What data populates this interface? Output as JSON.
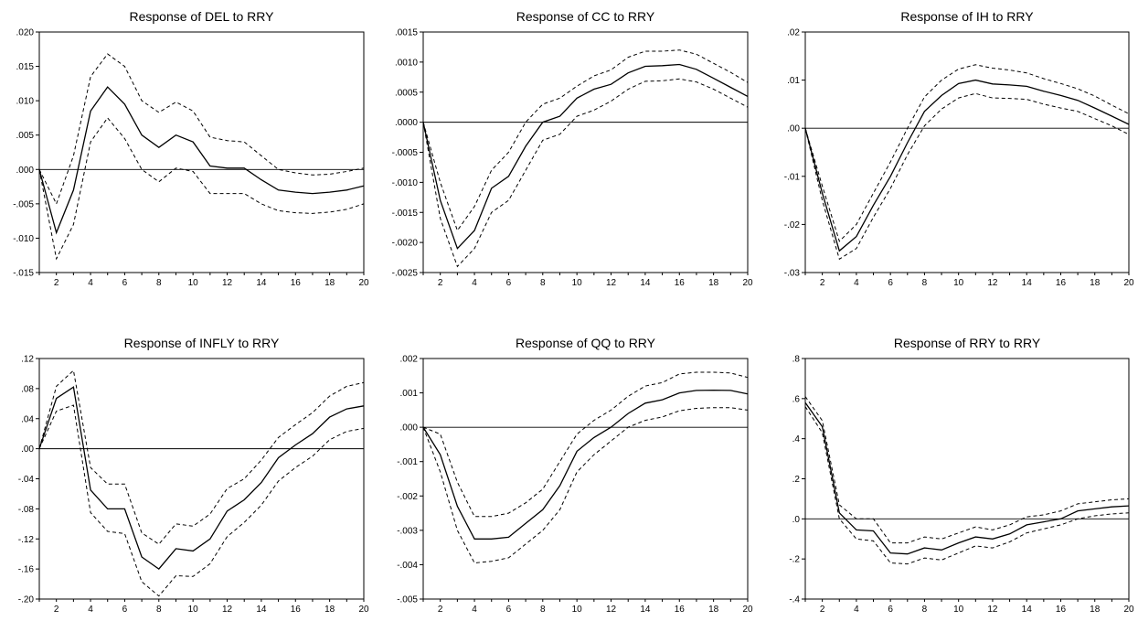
{
  "chart_data": [
    {
      "type": "line",
      "title": "Response of DEL to RRY",
      "x": [
        1,
        2,
        3,
        4,
        5,
        6,
        7,
        8,
        9,
        10,
        11,
        12,
        13,
        14,
        15,
        16,
        17,
        18,
        19,
        20
      ],
      "xticks": [
        "2",
        "4",
        "6",
        "8",
        "10",
        "12",
        "14",
        "16",
        "18",
        "20"
      ],
      "ylim": [
        -0.015,
        0.02
      ],
      "yticks": [
        ".020",
        ".015",
        ".010",
        ".005",
        ".000",
        "-.005",
        "-.010",
        "-.015"
      ],
      "grid": false,
      "series": [
        {
          "role": "response",
          "style": "solid",
          "values": [
            0.0,
            -0.0092,
            -0.003,
            0.0085,
            0.012,
            0.0095,
            0.005,
            0.0032,
            0.005,
            0.004,
            0.0005,
            0.0002,
            0.0002,
            -0.0015,
            -0.003,
            -0.0033,
            -0.0035,
            -0.0033,
            -0.003,
            -0.0024
          ]
        },
        {
          "role": "upper",
          "style": "dashed",
          "values": [
            0.0,
            -0.005,
            0.002,
            0.0135,
            0.0168,
            0.015,
            0.01,
            0.0083,
            0.0098,
            0.0085,
            0.0047,
            0.0042,
            0.004,
            0.002,
            0.0,
            -0.0005,
            -0.0008,
            -0.0007,
            -0.0003,
            0.0002
          ]
        },
        {
          "role": "lower",
          "style": "dashed",
          "values": [
            0.0,
            -0.013,
            -0.008,
            0.004,
            0.0075,
            0.0045,
            0.0,
            -0.0018,
            0.0002,
            -0.0003,
            -0.0035,
            -0.0035,
            -0.0035,
            -0.005,
            -0.006,
            -0.0063,
            -0.0064,
            -0.0062,
            -0.0058,
            -0.005
          ]
        }
      ]
    },
    {
      "type": "line",
      "title": "Response of CC to RRY",
      "x": [
        1,
        2,
        3,
        4,
        5,
        6,
        7,
        8,
        9,
        10,
        11,
        12,
        13,
        14,
        15,
        16,
        17,
        18,
        19,
        20
      ],
      "xticks": [
        "2",
        "4",
        "6",
        "8",
        "10",
        "12",
        "14",
        "16",
        "18",
        "20"
      ],
      "ylim": [
        -0.0025,
        0.0015
      ],
      "yticks": [
        ".0015",
        ".0010",
        ".0005",
        ".0000",
        "-.0005",
        "-.0010",
        "-.0015",
        "-.0020",
        "-.0025"
      ],
      "grid": false,
      "series": [
        {
          "role": "response",
          "style": "solid",
          "values": [
            0.0,
            -0.0013,
            -0.0021,
            -0.0018,
            -0.0011,
            -0.0009,
            -0.0004,
            0.0,
            0.0001,
            0.0004,
            0.00055,
            0.00063,
            0.00082,
            0.00093,
            0.00094,
            0.00096,
            0.00088,
            0.00073,
            0.00058,
            0.00043
          ]
        },
        {
          "role": "upper",
          "style": "dashed",
          "values": [
            0.0,
            -0.001,
            -0.0018,
            -0.0014,
            -0.0008,
            -0.0005,
            0.0,
            0.0003,
            0.0004,
            0.0006,
            0.00077,
            0.00087,
            0.00108,
            0.00118,
            0.00118,
            0.0012,
            0.00113,
            0.00098,
            0.00083,
            0.00066
          ]
        },
        {
          "role": "lower",
          "style": "dashed",
          "values": [
            0.0,
            -0.0016,
            -0.0024,
            -0.0021,
            -0.0015,
            -0.0013,
            -0.0008,
            -0.0003,
            -0.0002,
            0.0001,
            0.0002,
            0.00035,
            0.00055,
            0.00068,
            0.00069,
            0.00072,
            0.00067,
            0.00055,
            0.0004,
            0.00025
          ]
        }
      ]
    },
    {
      "type": "line",
      "title": "Response of IH to RRY",
      "x": [
        1,
        2,
        3,
        4,
        5,
        6,
        7,
        8,
        9,
        10,
        11,
        12,
        13,
        14,
        15,
        16,
        17,
        18,
        19,
        20
      ],
      "xticks": [
        "2",
        "4",
        "6",
        "8",
        "10",
        "12",
        "14",
        "16",
        "18",
        "20"
      ],
      "ylim": [
        -0.03,
        0.02
      ],
      "yticks": [
        ".02",
        ".01",
        ".00",
        "-.01",
        "-.02",
        "-.03"
      ],
      "grid": false,
      "series": [
        {
          "role": "response",
          "style": "solid",
          "values": [
            0.0,
            -0.0135,
            -0.0255,
            -0.0225,
            -0.016,
            -0.01,
            -0.003,
            0.0035,
            0.0068,
            0.0093,
            0.01,
            0.0092,
            0.009,
            0.0087,
            0.0077,
            0.0068,
            0.0058,
            0.0042,
            0.0025,
            0.0008
          ]
        },
        {
          "role": "upper",
          "style": "dashed",
          "values": [
            0.0,
            -0.012,
            -0.0235,
            -0.02,
            -0.0135,
            -0.007,
            0.0,
            0.0065,
            0.01,
            0.0123,
            0.0132,
            0.0125,
            0.0121,
            0.0115,
            0.0103,
            0.0093,
            0.0082,
            0.0067,
            0.0048,
            0.003
          ]
        },
        {
          "role": "lower",
          "style": "dashed",
          "values": [
            0.0,
            -0.015,
            -0.0272,
            -0.025,
            -0.0185,
            -0.0125,
            -0.0055,
            0.0005,
            0.004,
            0.0063,
            0.0072,
            0.0063,
            0.0062,
            0.006,
            0.005,
            0.0042,
            0.0035,
            0.002,
            0.0005,
            -0.0013
          ]
        }
      ]
    },
    {
      "type": "line",
      "title": "Response of INFLY to RRY",
      "x": [
        1,
        2,
        3,
        4,
        5,
        6,
        7,
        8,
        9,
        10,
        11,
        12,
        13,
        14,
        15,
        16,
        17,
        18,
        19,
        20
      ],
      "xticks": [
        "2",
        "4",
        "6",
        "8",
        "10",
        "12",
        "14",
        "16",
        "18",
        "20"
      ],
      "ylim": [
        -0.2,
        0.12
      ],
      "yticks": [
        ".12",
        ".08",
        ".04",
        ".00",
        "-.04",
        "-.08",
        "-.12",
        "-.16",
        "-.20"
      ],
      "grid": false,
      "series": [
        {
          "role": "response",
          "style": "solid",
          "values": [
            0.0,
            0.067,
            0.082,
            -0.055,
            -0.08,
            -0.08,
            -0.144,
            -0.16,
            -0.133,
            -0.136,
            -0.12,
            -0.083,
            -0.068,
            -0.045,
            -0.012,
            0.005,
            0.02,
            0.042,
            0.053,
            0.057
          ]
        },
        {
          "role": "upper",
          "style": "dashed",
          "values": [
            0.0,
            0.083,
            0.104,
            -0.025,
            -0.047,
            -0.047,
            -0.112,
            -0.127,
            -0.1,
            -0.103,
            -0.087,
            -0.053,
            -0.04,
            -0.015,
            0.015,
            0.032,
            0.048,
            0.07,
            0.083,
            0.088
          ]
        },
        {
          "role": "lower",
          "style": "dashed",
          "values": [
            0.0,
            0.05,
            0.058,
            -0.085,
            -0.11,
            -0.113,
            -0.177,
            -0.196,
            -0.169,
            -0.17,
            -0.153,
            -0.117,
            -0.098,
            -0.075,
            -0.043,
            -0.025,
            -0.01,
            0.012,
            0.023,
            0.027
          ]
        }
      ]
    },
    {
      "type": "line",
      "title": "Response of QQ to RRY",
      "x": [
        1,
        2,
        3,
        4,
        5,
        6,
        7,
        8,
        9,
        10,
        11,
        12,
        13,
        14,
        15,
        16,
        17,
        18,
        19,
        20
      ],
      "xticks": [
        "2",
        "4",
        "6",
        "8",
        "10",
        "12",
        "14",
        "16",
        "18",
        "20"
      ],
      "ylim": [
        -0.005,
        0.002
      ],
      "yticks": [
        ".002",
        ".001",
        ".000",
        "-.001",
        "-.002",
        "-.003",
        "-.004",
        "-.005"
      ],
      "grid": false,
      "series": [
        {
          "role": "response",
          "style": "solid",
          "values": [
            0.0,
            -0.0008,
            -0.0023,
            -0.00325,
            -0.00325,
            -0.0032,
            -0.0028,
            -0.0024,
            -0.0017,
            -0.0007,
            -0.0003,
            0.0,
            0.0004,
            0.0007,
            0.0008,
            0.001,
            0.00107,
            0.00108,
            0.00107,
            0.00097
          ]
        },
        {
          "role": "upper",
          "style": "dashed",
          "values": [
            0.0,
            -0.0002,
            -0.0016,
            -0.0026,
            -0.0026,
            -0.0025,
            -0.0022,
            -0.0018,
            -0.001,
            -0.0002,
            0.0002,
            0.0005,
            0.0009,
            0.0012,
            0.0013,
            0.00155,
            0.0016,
            0.0016,
            0.00158,
            0.00145
          ]
        },
        {
          "role": "lower",
          "style": "dashed",
          "values": [
            0.0,
            -0.0013,
            -0.003,
            -0.00395,
            -0.0039,
            -0.0038,
            -0.0034,
            -0.003,
            -0.0024,
            -0.0013,
            -0.0008,
            -0.0004,
            0.0,
            0.0002,
            0.0003,
            0.00048,
            0.00055,
            0.00057,
            0.00057,
            0.0005
          ]
        }
      ]
    },
    {
      "type": "line",
      "title": "Response of RRY to RRY",
      "x": [
        1,
        2,
        3,
        4,
        5,
        6,
        7,
        8,
        9,
        10,
        11,
        12,
        13,
        14,
        15,
        16,
        17,
        18,
        19,
        20
      ],
      "xticks": [
        "2",
        "4",
        "6",
        "8",
        "10",
        "12",
        "14",
        "16",
        "18",
        "20"
      ],
      "ylim": [
        -0.4,
        0.8
      ],
      "yticks": [
        ".8",
        ".6",
        ".4",
        ".2",
        ".0",
        "-.2",
        "-.4"
      ],
      "grid": false,
      "series": [
        {
          "role": "response",
          "style": "solid",
          "values": [
            0.58,
            0.46,
            0.03,
            -0.055,
            -0.06,
            -0.17,
            -0.175,
            -0.145,
            -0.155,
            -0.12,
            -0.09,
            -0.1,
            -0.075,
            -0.03,
            -0.015,
            0.0,
            0.04,
            0.05,
            0.06,
            0.065
          ]
        },
        {
          "role": "upper",
          "style": "dashed",
          "values": [
            0.61,
            0.49,
            0.07,
            0.0,
            0.0,
            -0.12,
            -0.12,
            -0.09,
            -0.1,
            -0.07,
            -0.04,
            -0.055,
            -0.03,
            0.01,
            0.02,
            0.04,
            0.075,
            0.085,
            0.095,
            0.1
          ]
        },
        {
          "role": "lower",
          "style": "dashed",
          "values": [
            0.56,
            0.43,
            0.0,
            -0.1,
            -0.11,
            -0.22,
            -0.225,
            -0.195,
            -0.205,
            -0.17,
            -0.135,
            -0.145,
            -0.115,
            -0.07,
            -0.05,
            -0.03,
            0.0,
            0.015,
            0.025,
            0.03
          ]
        }
      ]
    }
  ]
}
